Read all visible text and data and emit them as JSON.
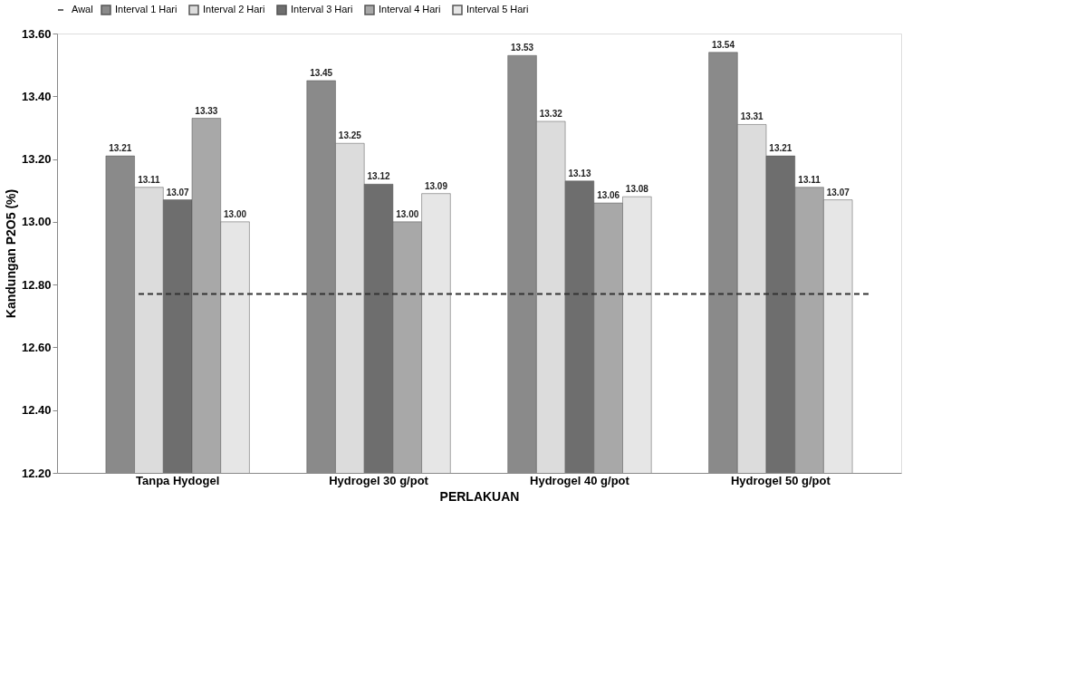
{
  "chart_data": {
    "type": "bar",
    "xlabel": "PERLAKUAN",
    "ylabel": "Kandungan P2O5 (%)",
    "categories": [
      "Tanpa Hydogel",
      "Hydrogel 30 g/pot",
      "Hydrogel 40 g/pot",
      "Hydrogel 50 g/pot"
    ],
    "series": [
      {
        "name": "Interval 1 Hari",
        "color": "#8a8a8a",
        "values": [
          13.21,
          13.45,
          13.53,
          13.54
        ],
        "value_labels": [
          "13.21",
          "13.45",
          "13.53",
          "13.54"
        ]
      },
      {
        "name": "Interval 2 Hari",
        "color": "#dcdcdc",
        "values": [
          13.11,
          13.25,
          13.32,
          13.31
        ],
        "value_labels": [
          "13.11",
          "13.25",
          "13.32",
          "13.31"
        ]
      },
      {
        "name": "Interval 3 Hari",
        "color": "#6e6e6e",
        "values": [
          13.07,
          13.12,
          13.13,
          13.21
        ],
        "value_labels": [
          "13.07",
          "13.12",
          "13.13",
          "13.21"
        ]
      },
      {
        "name": "Interval 4 Hari",
        "color": "#a8a8a8",
        "values": [
          13.33,
          13.0,
          13.06,
          13.11
        ],
        "value_labels": [
          "13.33",
          "13.00",
          "13.06",
          "13.11"
        ]
      },
      {
        "name": "Interval 5 Hari",
        "color": "#e6e6e6",
        "values": [
          13.0,
          13.09,
          13.08,
          13.07
        ],
        "value_labels": [
          "13.00",
          "13.09",
          "13.08",
          "13.07"
        ]
      }
    ],
    "ref_lines": [
      {
        "axis": "y",
        "value": 12.77,
        "label": "Awal",
        "color": "#333333",
        "line_style": "dashed"
      }
    ],
    "ylim": [
      12.2,
      13.6
    ],
    "yticks": [
      {
        "value": 12.2,
        "label": "12.20"
      },
      {
        "value": 12.4,
        "label": "12.40"
      },
      {
        "value": 12.6,
        "label": "12.60"
      },
      {
        "value": 12.8,
        "label": "12.80"
      },
      {
        "value": 13.0,
        "label": "13.00"
      },
      {
        "value": 13.2,
        "label": "13.20"
      },
      {
        "value": 13.4,
        "label": "13.40"
      },
      {
        "value": 13.6,
        "label": "13.60"
      }
    ],
    "grid": false,
    "legend": "top"
  }
}
